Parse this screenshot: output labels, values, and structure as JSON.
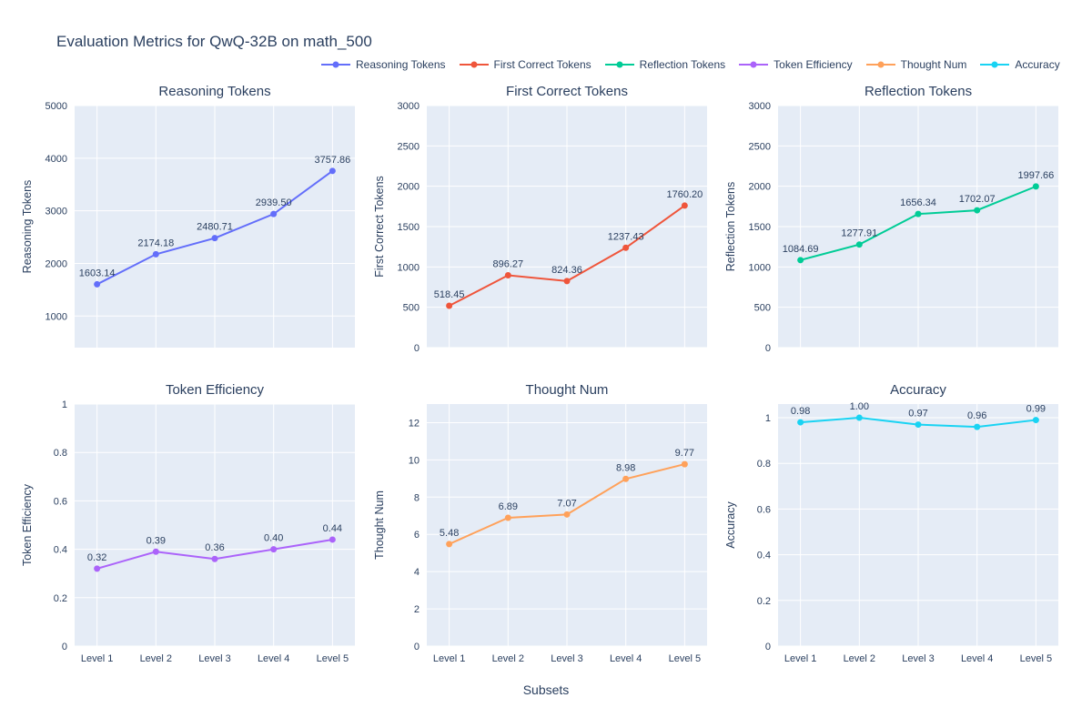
{
  "page": {
    "title": "Evaluation Metrics for QwQ-32B on math_500",
    "xlabel": "Subsets"
  },
  "colors": {
    "text": "#2a3f5f",
    "plot_bg": "#e5ecf6",
    "grid": "#ffffff"
  },
  "legend": [
    {
      "label": "Reasoning Tokens",
      "color": "#636efa"
    },
    {
      "label": "First Correct Tokens",
      "color": "#ef553b"
    },
    {
      "label": "Reflection Tokens",
      "color": "#00cc96"
    },
    {
      "label": "Token Efficiency",
      "color": "#ab63fa"
    },
    {
      "label": "Thought Num",
      "color": "#ffa15a"
    },
    {
      "label": "Accuracy",
      "color": "#19d3f3"
    }
  ],
  "categories": [
    "Level 1",
    "Level 2",
    "Level 3",
    "Level 4",
    "Level 5"
  ],
  "chart_data": [
    {
      "type": "line",
      "title": "Reasoning Tokens",
      "ylabel": "Reasoning Tokens",
      "color": "#636efa",
      "values": [
        1603.14,
        2174.18,
        2480.71,
        2939.5,
        3757.86
      ],
      "labels": [
        "1603.14",
        "2174.18",
        "2480.71",
        "2939.50",
        "3757.86"
      ],
      "ylim": [
        400,
        5000
      ],
      "yticks": [
        1000,
        2000,
        3000,
        4000,
        5000
      ]
    },
    {
      "type": "line",
      "title": "First Correct Tokens",
      "ylabel": "First Correct Tokens",
      "color": "#ef553b",
      "values": [
        518.45,
        896.27,
        824.36,
        1237.43,
        1760.2
      ],
      "labels": [
        "518.45",
        "896.27",
        "824.36",
        "1237.43",
        "1760.20"
      ],
      "ylim": [
        0,
        3000
      ],
      "yticks": [
        0,
        500,
        1000,
        1500,
        2000,
        2500,
        3000
      ]
    },
    {
      "type": "line",
      "title": "Reflection Tokens",
      "ylabel": "Reflection Tokens",
      "color": "#00cc96",
      "values": [
        1084.69,
        1277.91,
        1656.34,
        1702.07,
        1997.66
      ],
      "labels": [
        "1084.69",
        "1277.91",
        "1656.34",
        "1702.07",
        "1997.66"
      ],
      "ylim": [
        0,
        3000
      ],
      "yticks": [
        0,
        500,
        1000,
        1500,
        2000,
        2500,
        3000
      ]
    },
    {
      "type": "line",
      "title": "Token Efficiency",
      "ylabel": "Token Efficiency",
      "color": "#ab63fa",
      "values": [
        0.32,
        0.39,
        0.36,
        0.4,
        0.44
      ],
      "labels": [
        "0.32",
        "0.39",
        "0.36",
        "0.40",
        "0.44"
      ],
      "ylim": [
        0,
        1
      ],
      "yticks": [
        0,
        0.2,
        0.4,
        0.6,
        0.8,
        1
      ]
    },
    {
      "type": "line",
      "title": "Thought Num",
      "ylabel": "Thought Num",
      "color": "#ffa15a",
      "values": [
        5.48,
        6.89,
        7.07,
        8.98,
        9.77
      ],
      "labels": [
        "5.48",
        "6.89",
        "7.07",
        "8.98",
        "9.77"
      ],
      "ylim": [
        0,
        13
      ],
      "yticks": [
        0,
        2,
        4,
        6,
        8,
        10,
        12
      ]
    },
    {
      "type": "line",
      "title": "Accuracy",
      "ylabel": "Accuracy",
      "color": "#19d3f3",
      "values": [
        0.98,
        1.0,
        0.97,
        0.96,
        0.99
      ],
      "labels": [
        "0.98",
        "1.00",
        "0.97",
        "0.96",
        "0.99"
      ],
      "ylim": [
        0,
        1.06
      ],
      "yticks": [
        0,
        0.2,
        0.4,
        0.6,
        0.8,
        1
      ]
    }
  ]
}
